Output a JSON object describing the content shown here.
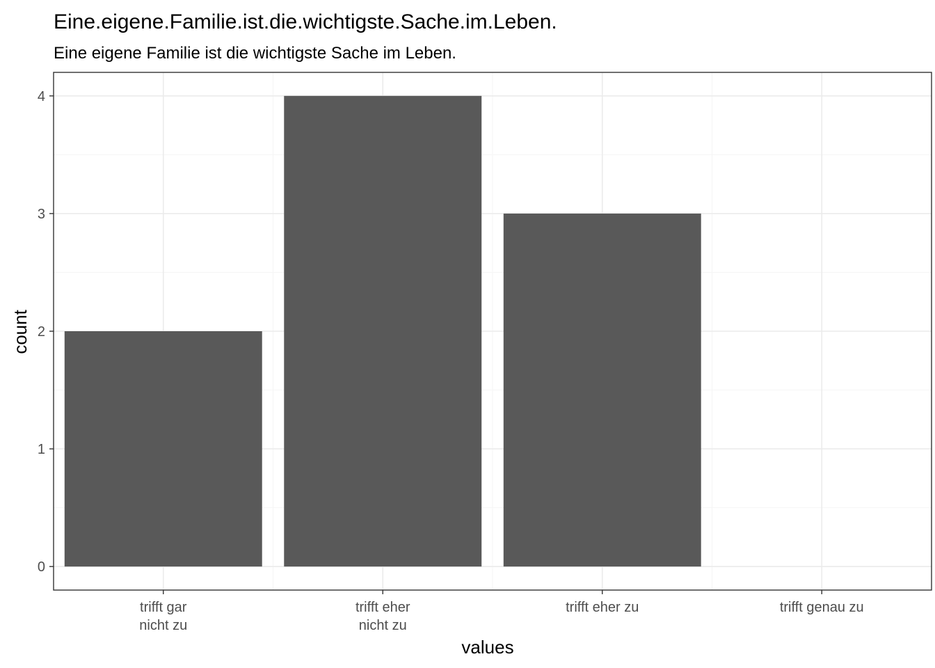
{
  "chart_data": {
    "type": "bar",
    "title": "Eine.eigene.Familie.ist.die.wichtigste.Sache.im.Leben.",
    "subtitle": "Eine eigene Familie ist die wichtigste Sache im Leben.",
    "xlabel": "values",
    "ylabel": "count",
    "categories": [
      [
        "trifft gar",
        "nicht zu"
      ],
      [
        "trifft eher",
        "nicht zu"
      ],
      [
        "trifft eher zu"
      ],
      [
        "trifft genau zu"
      ]
    ],
    "values": [
      2,
      4,
      3,
      0
    ],
    "ylim": [
      -0.2,
      4.2
    ],
    "yticks": [
      0,
      1,
      2,
      3,
      4
    ],
    "grid": true,
    "bar_color": "#595959",
    "grid_major_color": "#ebebeb",
    "grid_minor_color": "#f5f5f5",
    "panel_border_color": "#333333"
  }
}
